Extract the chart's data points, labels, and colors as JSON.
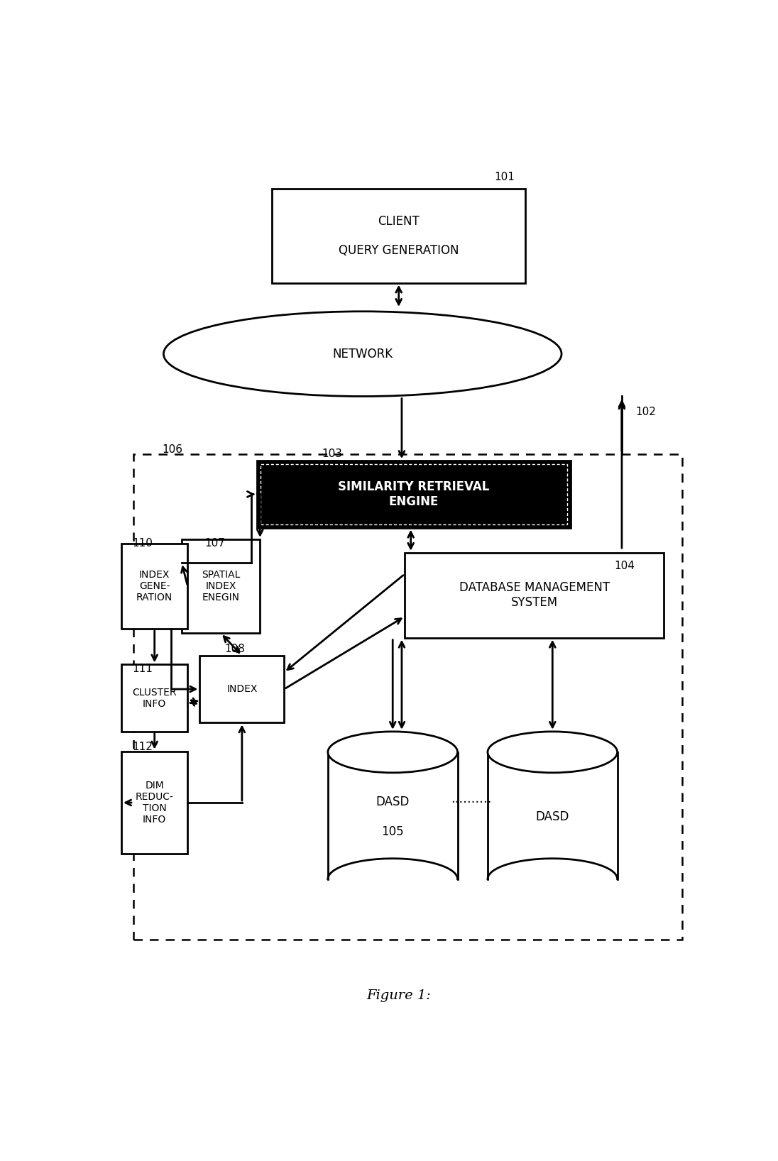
{
  "title": "Figure 1:",
  "bg_color": "#ffffff",
  "fig_width": 10.96,
  "fig_height": 16.36,
  "labels": {
    "client": "CLIENT\n\nQUERY GENERATION",
    "network": "NETWORK",
    "sre": "SIMILARITY RETRIEVAL\nENGINE",
    "dbms": "DATABASE MANAGEMENT\nSYSTEM",
    "spatial": "SPATIAL\nINDEX\nENEGIN",
    "index": "INDEX",
    "index_gen": "INDEX\nGENE-\nRATION",
    "cluster": "CLUSTER\nINFO",
    "dim": "DIM\nREDUC-\nTION\nINFO",
    "dasd1": "DASD\n\n105",
    "dasd2": "DASD"
  }
}
